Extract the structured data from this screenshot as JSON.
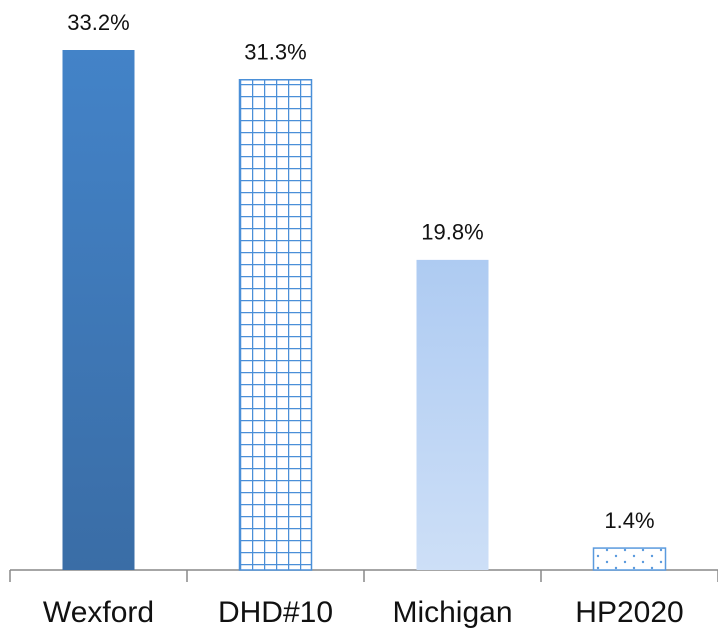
{
  "chart_data": {
    "type": "bar",
    "categories": [
      "Wexford",
      "DHD#10",
      "Michigan",
      "HP2020"
    ],
    "values": [
      33.2,
      31.3,
      19.8,
      1.4
    ],
    "value_labels": [
      "33.2%",
      "31.3%",
      "19.8%",
      "1.4%"
    ],
    "colors": [
      "#4383c8",
      "#4a8fd8",
      "#aecbf2",
      "#5a9ade"
    ]
  }
}
